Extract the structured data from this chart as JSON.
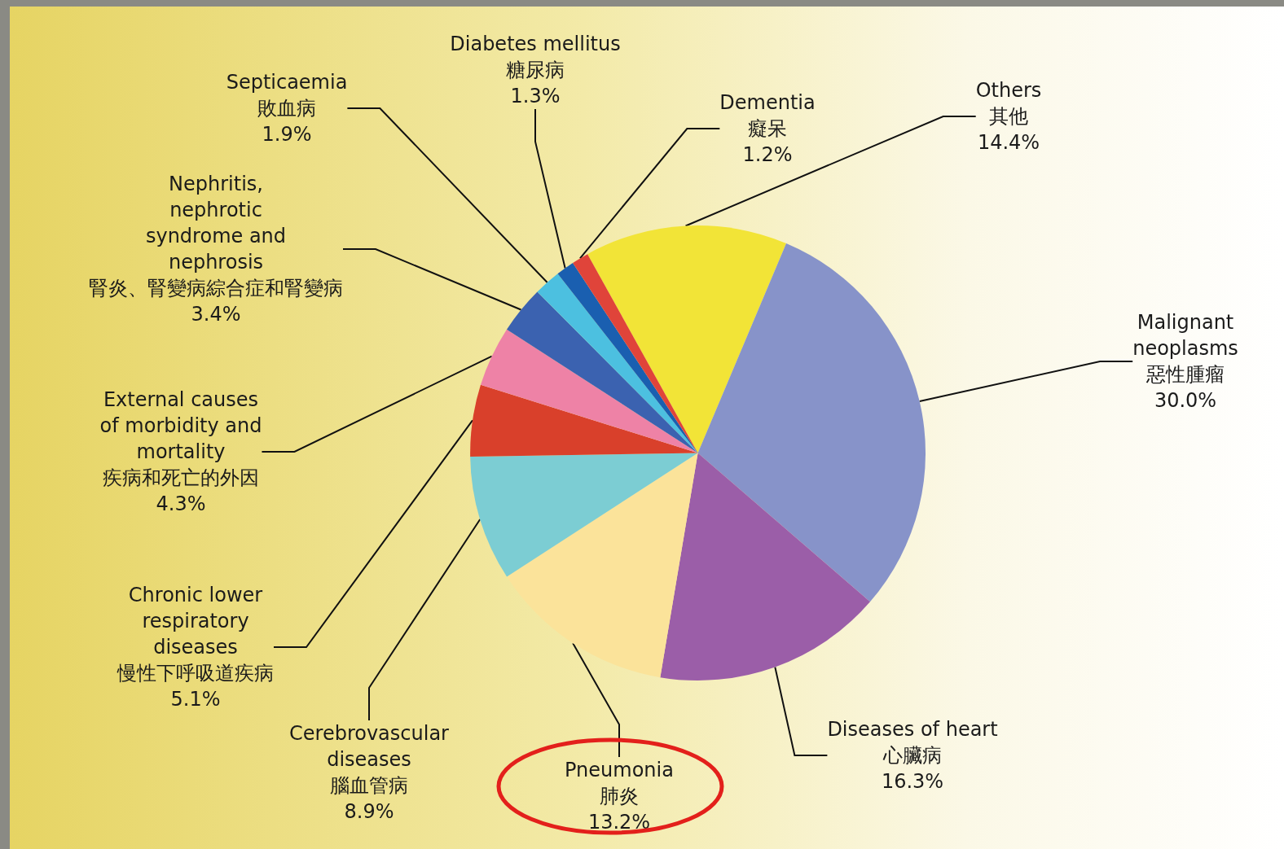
{
  "chart_data": {
    "type": "pie",
    "categories": [
      "Others\n其他",
      "Malignant\nneoplasms\n惡性腫瘤",
      "Diseases of heart\n心臟病",
      "Pneumonia\n肺炎",
      "Cerebrovascular\ndiseases\n腦血管病",
      "Chronic lower\nrespiratory\ndiseases\n慢性下呼吸道疾病",
      "External causes\nof morbidity and\nmortality\n疾病和死亡的外因",
      "Nephritis,\nnephrotic\nsyndrome and\nnephrosis\n腎炎、腎變病綜合症和腎變病",
      "Septicaemia\n敗血病",
      "Diabetes mellitus\n糖尿病",
      "Dementia\n癡呆"
    ],
    "values": [
      14.4,
      30.0,
      16.3,
      13.2,
      8.9,
      5.1,
      4.3,
      3.4,
      1.9,
      1.3,
      1.2
    ],
    "value_labels": [
      "14.4%",
      "30.0%",
      "16.3%",
      "13.2%",
      "8.9%",
      "5.1%",
      "4.3%",
      "3.4%",
      "1.9%",
      "1.3%",
      "1.2%"
    ],
    "colors": [
      "#f2e437",
      "#8793c9",
      "#9b5ea8",
      "#fbe39a",
      "#7ccdd3",
      "#d9402b",
      "#ee82a6",
      "#3b62b0",
      "#4cc0e0",
      "#1a5fb0",
      "#e0443a"
    ],
    "legend": false
  }
}
